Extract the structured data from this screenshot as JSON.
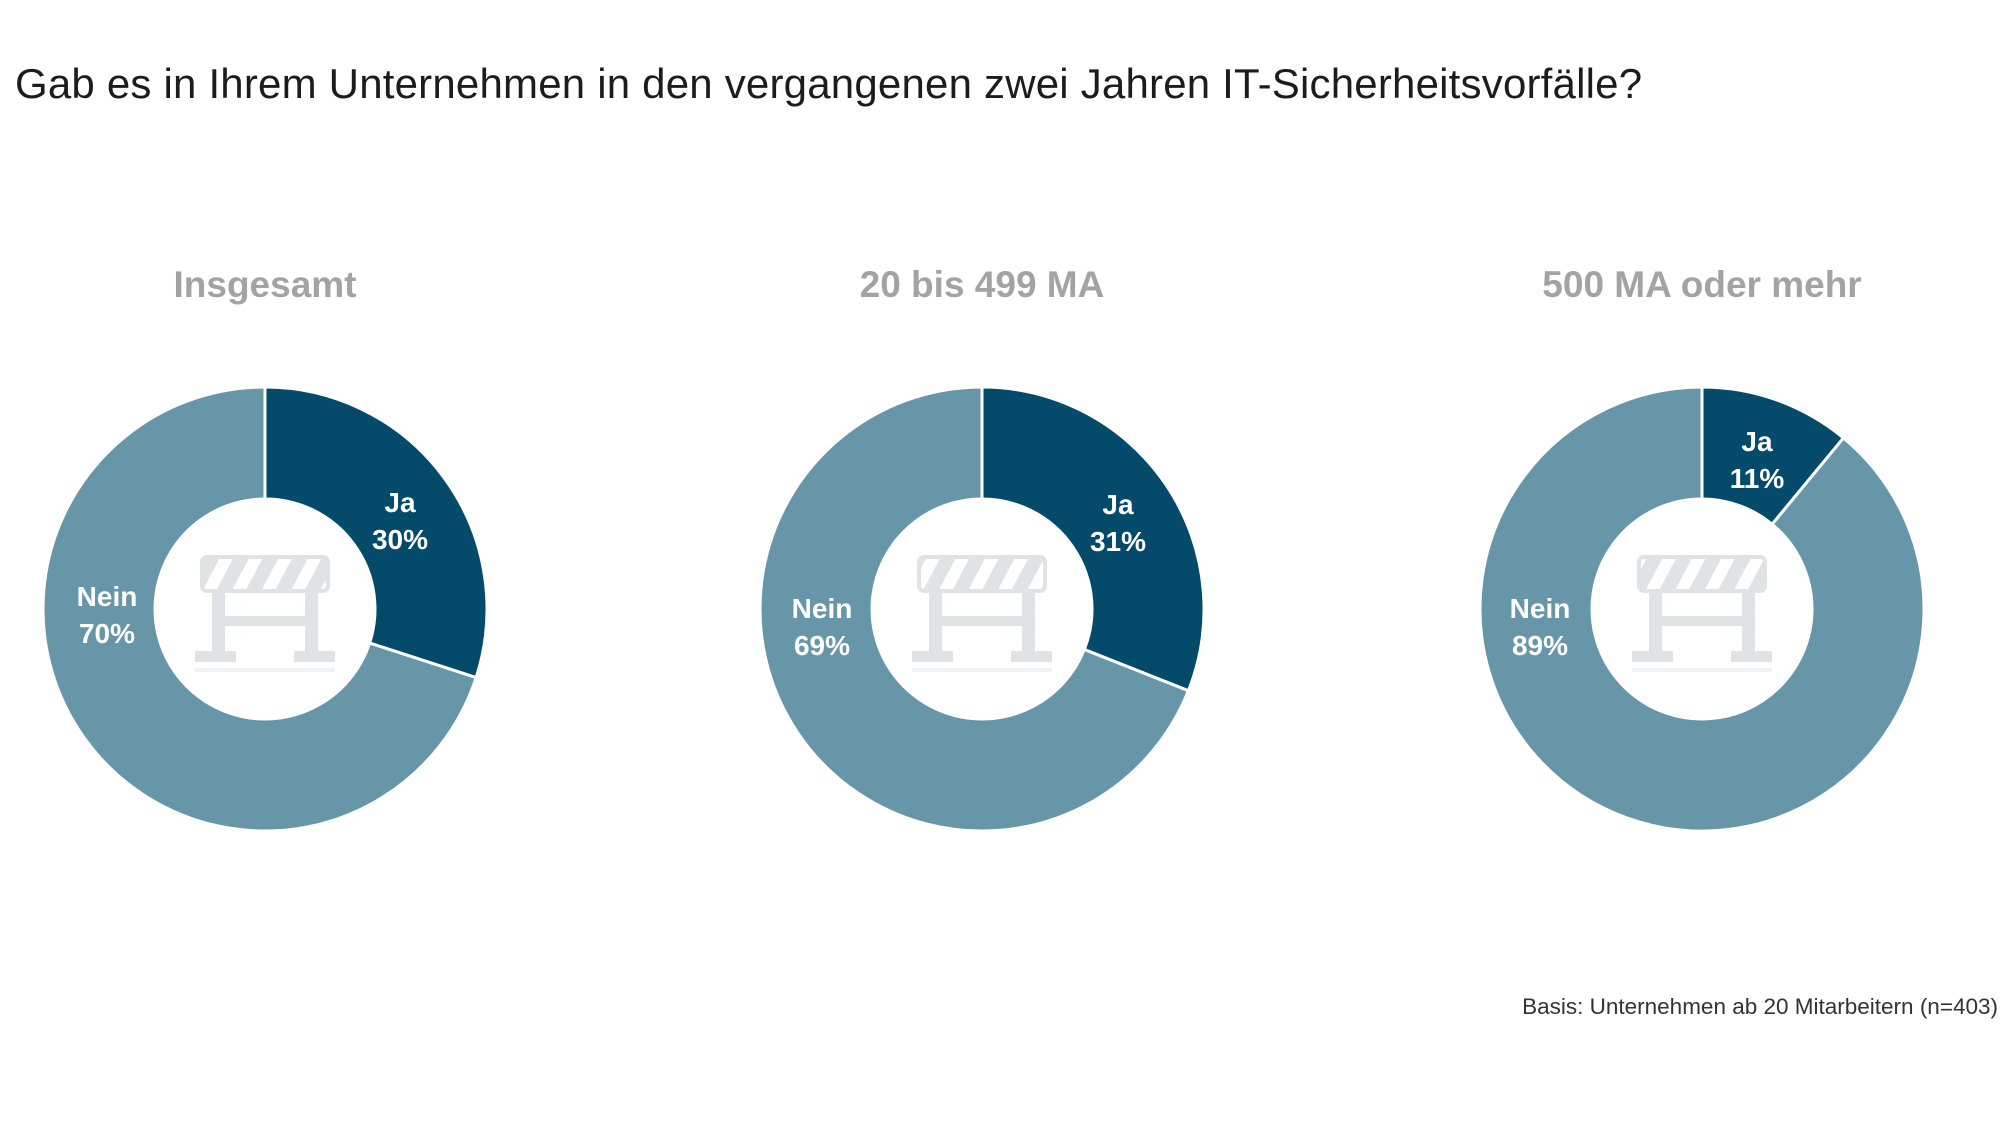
{
  "title": "Gab es in Ihrem Unternehmen in den vergangenen zwei Jahren IT-Sicherheitsvorfälle?",
  "footnote": "Basis: Unternehmen ab 20 Mitarbeitern (n=403)",
  "colors": {
    "ja": "#034a6b",
    "nein": "#6896a9",
    "category_title": "#a3a3a3",
    "icon": "#dfe3e6"
  },
  "chart_data": [
    {
      "type": "pie",
      "title": "Insgesamt",
      "slices": [
        {
          "label": "Ja",
          "value": 30,
          "value_text": "30%"
        },
        {
          "label": "Nein",
          "value": 70,
          "value_text": "70%"
        }
      ]
    },
    {
      "type": "pie",
      "title": "20 bis 499 MA",
      "slices": [
        {
          "label": "Ja",
          "value": 31,
          "value_text": "31%"
        },
        {
          "label": "Nein",
          "value": 69,
          "value_text": "69%"
        }
      ]
    },
    {
      "type": "pie",
      "title": "500 MA oder mehr",
      "slices": [
        {
          "label": "Ja",
          "value": 11,
          "value_text": "11%"
        },
        {
          "label": "Nein",
          "value": 89,
          "value_text": "89%"
        }
      ]
    }
  ]
}
